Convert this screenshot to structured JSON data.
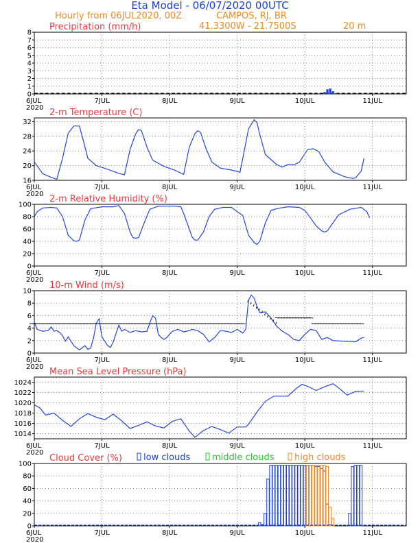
{
  "header": {
    "title": "Eta Model - 06/07/2020 00UTC",
    "subtitle": "Hourly from 06JUL2020, 00Z",
    "location": "CAMPOS, RJ, BR",
    "coords": "41.3300W - 21.7500S",
    "elevation": "20  m"
  },
  "colors": {
    "title": "#1a3fd6",
    "subtitle": "#f08a24",
    "panel_title": "#e83a3a",
    "series": "#2244dd",
    "low": "#1a3fd6",
    "middle": "#22cc22",
    "high": "#f08a24"
  },
  "x_ticks": [
    "6JUL",
    "7JUL",
    "8JUL",
    "9JUL",
    "10JUL",
    "11JUL"
  ],
  "x_year": "2020",
  "chart_data": [
    {
      "id": "precip",
      "type": "bar",
      "title": "Precipitation (mm/h)",
      "ylim": [
        0,
        8
      ],
      "yticks": [
        0,
        1,
        2,
        3,
        4,
        5,
        6,
        7,
        8
      ],
      "hours": 132,
      "bars": [
        [
          47,
          0.05
        ],
        [
          103,
          0.25
        ],
        [
          104,
          0.6
        ],
        [
          105,
          0.7
        ],
        [
          106,
          0.35
        ],
        [
          107,
          0.1
        ]
      ]
    },
    {
      "id": "temp",
      "type": "line",
      "title": "2-m Temperature (C)",
      "ylim": [
        16,
        33
      ],
      "yticks": [
        16,
        20,
        24,
        28,
        32
      ],
      "hours": 132,
      "points": [
        [
          0,
          21
        ],
        [
          3,
          17.8
        ],
        [
          6,
          16.8
        ],
        [
          8,
          16.3
        ],
        [
          10,
          22
        ],
        [
          12,
          28.8
        ],
        [
          14,
          30.8
        ],
        [
          16,
          30.8
        ],
        [
          17,
          28
        ],
        [
          19,
          22
        ],
        [
          22,
          20
        ],
        [
          26,
          19
        ],
        [
          30,
          17.9
        ],
        [
          31,
          17.7
        ],
        [
          32,
          17.5
        ],
        [
          34,
          24.5
        ],
        [
          36,
          28.7
        ],
        [
          37,
          29.8
        ],
        [
          38,
          29.6
        ],
        [
          40,
          25
        ],
        [
          42,
          21.5
        ],
        [
          46,
          19.8
        ],
        [
          50,
          18.7
        ],
        [
          53,
          17.6
        ],
        [
          55,
          25
        ],
        [
          57,
          28.7
        ],
        [
          58,
          29.5
        ],
        [
          59,
          29
        ],
        [
          61,
          24.5
        ],
        [
          63,
          21
        ],
        [
          66,
          19.3
        ],
        [
          70,
          18.8
        ],
        [
          73,
          18.2
        ],
        [
          74,
          22
        ],
        [
          76,
          30
        ],
        [
          78,
          32.5
        ],
        [
          79,
          31.8
        ],
        [
          80,
          28.5
        ],
        [
          82,
          23
        ],
        [
          86,
          20.3
        ],
        [
          88,
          19.6
        ],
        [
          90,
          20.3
        ],
        [
          92,
          20.2
        ],
        [
          94,
          20.9
        ],
        [
          97,
          24.4
        ],
        [
          99,
          24.6
        ],
        [
          101,
          23.8
        ],
        [
          103,
          21
        ],
        [
          106,
          18.3
        ],
        [
          110,
          17
        ],
        [
          113,
          16.5
        ],
        [
          114,
          16.7
        ],
        [
          116,
          18.5
        ],
        [
          117,
          22
        ]
      ]
    },
    {
      "id": "rh",
      "type": "line",
      "title": "2-m Relative Humidity (%)",
      "ylim": [
        0,
        100
      ],
      "yticks": [
        0,
        20,
        40,
        60,
        80,
        100
      ],
      "hours": 132,
      "points": [
        [
          0,
          80
        ],
        [
          1,
          88
        ],
        [
          3,
          94
        ],
        [
          6,
          95
        ],
        [
          8,
          94
        ],
        [
          10,
          80
        ],
        [
          12,
          50
        ],
        [
          14,
          41
        ],
        [
          15,
          40
        ],
        [
          16,
          42
        ],
        [
          18,
          75
        ],
        [
          20,
          93
        ],
        [
          24,
          96
        ],
        [
          28,
          96
        ],
        [
          30,
          98
        ],
        [
          32,
          85
        ],
        [
          34,
          55
        ],
        [
          35,
          46
        ],
        [
          36,
          45
        ],
        [
          37,
          46
        ],
        [
          39,
          70
        ],
        [
          41,
          92
        ],
        [
          44,
          97
        ],
        [
          50,
          97
        ],
        [
          52,
          96
        ],
        [
          53,
          85
        ],
        [
          55,
          60
        ],
        [
          56,
          47
        ],
        [
          57,
          42
        ],
        [
          58,
          42
        ],
        [
          60,
          55
        ],
        [
          62,
          80
        ],
        [
          64,
          92
        ],
        [
          67,
          95
        ],
        [
          70,
          95
        ],
        [
          72,
          88
        ],
        [
          74,
          82
        ],
        [
          76,
          50
        ],
        [
          78,
          38
        ],
        [
          79,
          35
        ],
        [
          80,
          40
        ],
        [
          82,
          70
        ],
        [
          84,
          90
        ],
        [
          86,
          93
        ],
        [
          90,
          96
        ],
        [
          94,
          95
        ],
        [
          96,
          90
        ],
        [
          98,
          78
        ],
        [
          100,
          65
        ],
        [
          102,
          57
        ],
        [
          103,
          55
        ],
        [
          104,
          57
        ],
        [
          106,
          70
        ],
        [
          108,
          83
        ],
        [
          112,
          92
        ],
        [
          116,
          95
        ],
        [
          118,
          88
        ],
        [
          119,
          78
        ]
      ]
    },
    {
      "id": "wind",
      "type": "line",
      "title": "10-m Wind (m/s)",
      "ylim": [
        0,
        10
      ],
      "yticks": [
        0,
        2,
        4,
        6,
        8,
        10
      ],
      "hours": 132,
      "points": [
        [
          0,
          5
        ],
        [
          1,
          3.8
        ],
        [
          3,
          3.5
        ],
        [
          5,
          3.6
        ],
        [
          6,
          4.2
        ],
        [
          7,
          3.5
        ],
        [
          8,
          3.6
        ],
        [
          9,
          3.3
        ],
        [
          10,
          2.8
        ],
        [
          11,
          1.9
        ],
        [
          12,
          2.6
        ],
        [
          14,
          1.2
        ],
        [
          16,
          0.5
        ],
        [
          18,
          1.2
        ],
        [
          19,
          0.6
        ],
        [
          20,
          0.8
        ],
        [
          21,
          2.4
        ],
        [
          22,
          4.8
        ],
        [
          23,
          5.5
        ],
        [
          24,
          2.6
        ],
        [
          26,
          1.2
        ],
        [
          27,
          0.9
        ],
        [
          28,
          1.8
        ],
        [
          30,
          4.5
        ],
        [
          31,
          3.5
        ],
        [
          32,
          3.8
        ],
        [
          34,
          3.3
        ],
        [
          36,
          3.6
        ],
        [
          38,
          3.4
        ],
        [
          40,
          3.5
        ],
        [
          41,
          4.8
        ],
        [
          42,
          6
        ],
        [
          43,
          5.6
        ],
        [
          44,
          3
        ],
        [
          45,
          2.5
        ],
        [
          46,
          2.2
        ],
        [
          47,
          2.5
        ],
        [
          48,
          3
        ],
        [
          49,
          3.5
        ],
        [
          51,
          3.8
        ],
        [
          53,
          3.4
        ],
        [
          55,
          3.6
        ],
        [
          56,
          3.8
        ],
        [
          58,
          3.6
        ],
        [
          60,
          3
        ],
        [
          62,
          1.8
        ],
        [
          64,
          2.5
        ],
        [
          66,
          3.6
        ],
        [
          68,
          3.5
        ],
        [
          70,
          3.3
        ],
        [
          72,
          3.8
        ],
        [
          73,
          3.5
        ],
        [
          74,
          3.2
        ],
        [
          75,
          3.8
        ],
        [
          76,
          8.5
        ],
        [
          77,
          9.3
        ],
        [
          78,
          8.8
        ],
        [
          79,
          7.5
        ],
        [
          80,
          6.5
        ],
        [
          82,
          6.6
        ],
        [
          84,
          5.6
        ],
        [
          86,
          4.3
        ],
        [
          88,
          3.5
        ],
        [
          90,
          3
        ],
        [
          92,
          2.2
        ],
        [
          94,
          2
        ],
        [
          96,
          3
        ],
        [
          98,
          3.8
        ],
        [
          100,
          3.6
        ],
        [
          102,
          2.2
        ],
        [
          104,
          2.5
        ],
        [
          106,
          2
        ],
        [
          110,
          1.9
        ],
        [
          114,
          1.8
        ],
        [
          116,
          2.4
        ],
        [
          117,
          2.5
        ]
      ]
    },
    {
      "id": "mslp",
      "type": "line",
      "title": "Mean Sea Level Pressure (hPa)",
      "ylim": [
        1013,
        1025
      ],
      "yticks": [
        1014,
        1016,
        1018,
        1020,
        1022,
        1024
      ],
      "hours": 132,
      "points": [
        [
          0,
          1019.6
        ],
        [
          2,
          1019
        ],
        [
          4,
          1017.6
        ],
        [
          7,
          1018
        ],
        [
          10,
          1016.6
        ],
        [
          13,
          1015.4
        ],
        [
          16,
          1016.9
        ],
        [
          19,
          1017.9
        ],
        [
          22,
          1017.2
        ],
        [
          25,
          1016.7
        ],
        [
          28,
          1017.8
        ],
        [
          31,
          1016.5
        ],
        [
          34,
          1015
        ],
        [
          37,
          1015.6
        ],
        [
          40,
          1016.3
        ],
        [
          43,
          1015.5
        ],
        [
          46,
          1015.1
        ],
        [
          49,
          1016.4
        ],
        [
          52,
          1016.9
        ],
        [
          55,
          1014.5
        ],
        [
          57,
          1013.3
        ],
        [
          60,
          1014.6
        ],
        [
          63,
          1015.4
        ],
        [
          66,
          1014.8
        ],
        [
          69,
          1014.1
        ],
        [
          72,
          1015.3
        ],
        [
          75,
          1015.3
        ],
        [
          76,
          1015.8
        ],
        [
          79,
          1018.2
        ],
        [
          82,
          1020.3
        ],
        [
          85,
          1021.3
        ],
        [
          87,
          1021.3
        ],
        [
          90,
          1021.3
        ],
        [
          93,
          1022.8
        ],
        [
          95,
          1023.6
        ],
        [
          97,
          1023.2
        ],
        [
          100,
          1022.4
        ],
        [
          103,
          1023.1
        ],
        [
          106,
          1023.7
        ],
        [
          108,
          1022.9
        ],
        [
          111,
          1021.5
        ],
        [
          114,
          1022.2
        ],
        [
          117,
          1022.3
        ]
      ]
    },
    {
      "id": "cloud",
      "type": "bar",
      "title": "Cloud Cover (%)",
      "ylim": [
        0,
        100
      ],
      "yticks": [
        0,
        20,
        40,
        60,
        80,
        100
      ],
      "hours": 132,
      "legend": [
        "low clouds",
        "middle clouds",
        "high clouds"
      ],
      "series": [
        {
          "name": "low clouds",
          "values": [
            [
              80,
              5
            ],
            [
              81,
              2
            ],
            [
              82,
              20
            ],
            [
              83,
              75
            ],
            [
              84,
              97
            ],
            [
              85,
              97
            ],
            [
              86,
              97
            ],
            [
              87,
              97
            ],
            [
              88,
              97
            ],
            [
              89,
              97
            ],
            [
              90,
              97
            ],
            [
              91,
              97
            ],
            [
              92,
              97
            ],
            [
              93,
              97
            ],
            [
              94,
              97
            ],
            [
              95,
              97
            ],
            [
              96,
              97
            ],
            [
              97,
              97
            ],
            [
              98,
              97
            ],
            [
              99,
              97
            ],
            [
              100,
              95
            ],
            [
              101,
              95
            ],
            [
              102,
              92
            ],
            [
              103,
              88
            ],
            [
              104,
              35
            ],
            [
              105,
              2
            ],
            [
              112,
              20
            ],
            [
              113,
              95
            ],
            [
              114,
              97
            ],
            [
              115,
              97
            ],
            [
              116,
              97
            ]
          ]
        },
        {
          "name": "middle clouds",
          "values": []
        },
        {
          "name": "high clouds",
          "values": [
            [
              97,
              97
            ],
            [
              98,
              97
            ],
            [
              99,
              97
            ],
            [
              100,
              97
            ],
            [
              101,
              97
            ],
            [
              102,
              97
            ],
            [
              103,
              97
            ],
            [
              104,
              95
            ],
            [
              105,
              30
            ],
            [
              106,
              12
            ]
          ]
        }
      ]
    }
  ]
}
